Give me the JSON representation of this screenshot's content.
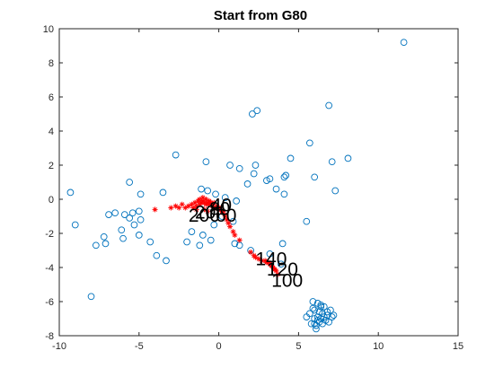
{
  "chart_data": {
    "type": "scatter",
    "title": "Start from G80",
    "xlabel": "",
    "ylabel": "",
    "xlim": [
      -10,
      15
    ],
    "ylim": [
      -8,
      10
    ],
    "xticks": [
      -10,
      -5,
      0,
      5,
      10,
      15
    ],
    "yticks": [
      -8,
      -6,
      -4,
      -2,
      0,
      2,
      4,
      6,
      8,
      10
    ],
    "grid": false,
    "legend": "none",
    "colors": {
      "data": "#0072BD",
      "trajectory": "#FF0000",
      "axis": "#262626"
    },
    "series": [
      {
        "marker": "circle",
        "x": [
          11.6,
          6.9,
          2.4,
          2.1,
          5.7,
          8.1,
          7.1,
          4.5,
          2.3,
          1.3,
          0.7,
          -0.8,
          -2.7,
          6.0,
          4.2,
          4.1,
          3.2,
          3.0,
          2.2,
          1.8,
          3.6,
          4.1,
          7.3,
          -9.3,
          -5.6,
          -4.9,
          -3.5,
          -1.1,
          -0.7,
          -0.2,
          0.4,
          1.1,
          -6.9,
          -6.5,
          -5.9,
          -5.4,
          -5.0,
          -5.6,
          -4.9,
          -5.3,
          -6.1,
          -7.2,
          -9.0,
          -7.1,
          -7.7,
          -6.0,
          -5.0,
          -4.3,
          -3.9,
          -3.3,
          -2.0,
          -1.7,
          -1.2,
          -1.0,
          -0.5,
          -0.3,
          0.2,
          0.9,
          1.0,
          1.3,
          2.0,
          3.2,
          4.0,
          5.5,
          -8.0,
          3.9,
          6.2,
          6.4,
          6.6,
          5.9,
          6.0,
          6.3,
          6.5,
          6.8,
          7.1,
          5.7,
          5.5,
          6.0,
          6.2,
          6.4,
          6.6,
          6.9,
          7.2,
          5.8,
          6.1,
          6.3,
          6.7,
          7.0,
          6.1,
          6.5,
          5.9,
          6.4,
          6.8,
          6.2,
          6.0
        ],
        "y": [
          9.2,
          5.5,
          5.2,
          5.0,
          3.3,
          2.4,
          2.2,
          2.4,
          2.0,
          1.8,
          2.0,
          2.2,
          2.6,
          1.3,
          1.4,
          1.3,
          1.2,
          1.1,
          1.5,
          0.9,
          0.6,
          0.3,
          0.5,
          0.4,
          1.0,
          0.3,
          0.4,
          0.6,
          0.5,
          0.3,
          0.1,
          -0.1,
          -0.9,
          -0.8,
          -0.9,
          -0.8,
          -0.7,
          -1.1,
          -1.2,
          -1.5,
          -1.8,
          -2.2,
          -1.5,
          -2.6,
          -2.7,
          -2.3,
          -2.1,
          -2.5,
          -3.3,
          -3.6,
          -2.5,
          -1.9,
          -2.7,
          -2.1,
          -2.4,
          -1.5,
          -1.0,
          -1.3,
          -2.6,
          -2.7,
          -3.0,
          -3.2,
          -2.6,
          -1.3,
          -5.7,
          -3.8,
          -6.1,
          -6.2,
          -6.3,
          -6.4,
          -6.5,
          -6.6,
          -6.7,
          -6.8,
          -6.9,
          -6.7,
          -6.9,
          -7.0,
          -7.1,
          -7.0,
          -6.9,
          -7.2,
          -6.8,
          -7.3,
          -7.4,
          -7.2,
          -7.1,
          -6.5,
          -7.6,
          -7.3,
          -6.0,
          -6.3,
          -6.6,
          -6.9,
          -7.3
        ]
      },
      {
        "marker": "star",
        "x": [
          -4.0,
          -3.0,
          -2.7,
          -2.5,
          -2.3,
          -2.1,
          -1.9,
          -1.7,
          -1.6,
          -1.5,
          -1.4,
          -1.3,
          -1.2,
          -1.1,
          -1.0,
          -0.9,
          -0.8,
          -0.7,
          -0.6,
          -0.5,
          -0.4,
          -0.3,
          -0.2,
          -0.1,
          0.0,
          0.1,
          0.2,
          -1.2,
          -1.0,
          -0.8,
          -0.6,
          -0.4,
          -1.4,
          -0.9,
          -0.7,
          0.3,
          0.4,
          0.5,
          0.6,
          0.7,
          0.9,
          1.0,
          1.3,
          2.0,
          2.2,
          2.3,
          2.5,
          2.7,
          2.9,
          3.0,
          3.1,
          3.2,
          3.3,
          3.4,
          3.5,
          3.6,
          3.7
        ],
        "y": [
          -0.6,
          -0.5,
          -0.4,
          -0.5,
          -0.3,
          -0.5,
          -0.4,
          -0.3,
          -0.5,
          -0.2,
          -0.4,
          -0.1,
          -0.3,
          -0.2,
          -0.1,
          -0.2,
          -0.3,
          -0.2,
          -0.3,
          -0.2,
          -0.4,
          -0.2,
          -0.5,
          -0.4,
          -0.5,
          -0.6,
          -0.7,
          0.0,
          0.1,
          0.0,
          -0.1,
          -0.3,
          -0.6,
          -0.6,
          -0.7,
          -0.8,
          -1.0,
          -1.2,
          -1.4,
          -1.6,
          -1.9,
          -2.1,
          -2.4,
          -3.1,
          -3.3,
          -3.4,
          -3.5,
          -3.6,
          -3.6,
          -3.7,
          -3.7,
          -3.8,
          -3.9,
          -4.0,
          -4.1,
          -4.2,
          -4.4
        ]
      }
    ],
    "annotations": [
      {
        "text": "200",
        "x": -1.9,
        "y": -0.95
      },
      {
        "text": "20",
        "x": -1.5,
        "y": -0.75
      },
      {
        "text": "40",
        "x": -0.5,
        "y": -0.35
      },
      {
        "text": "60",
        "x": -0.2,
        "y": -0.95
      },
      {
        "text": "80",
        "x": -0.6,
        "y": -0.55
      },
      {
        "text": "140",
        "x": 2.3,
        "y": -3.5
      },
      {
        "text": "120",
        "x": 3.0,
        "y": -4.1
      },
      {
        "text": "100",
        "x": 3.3,
        "y": -4.75
      }
    ]
  }
}
